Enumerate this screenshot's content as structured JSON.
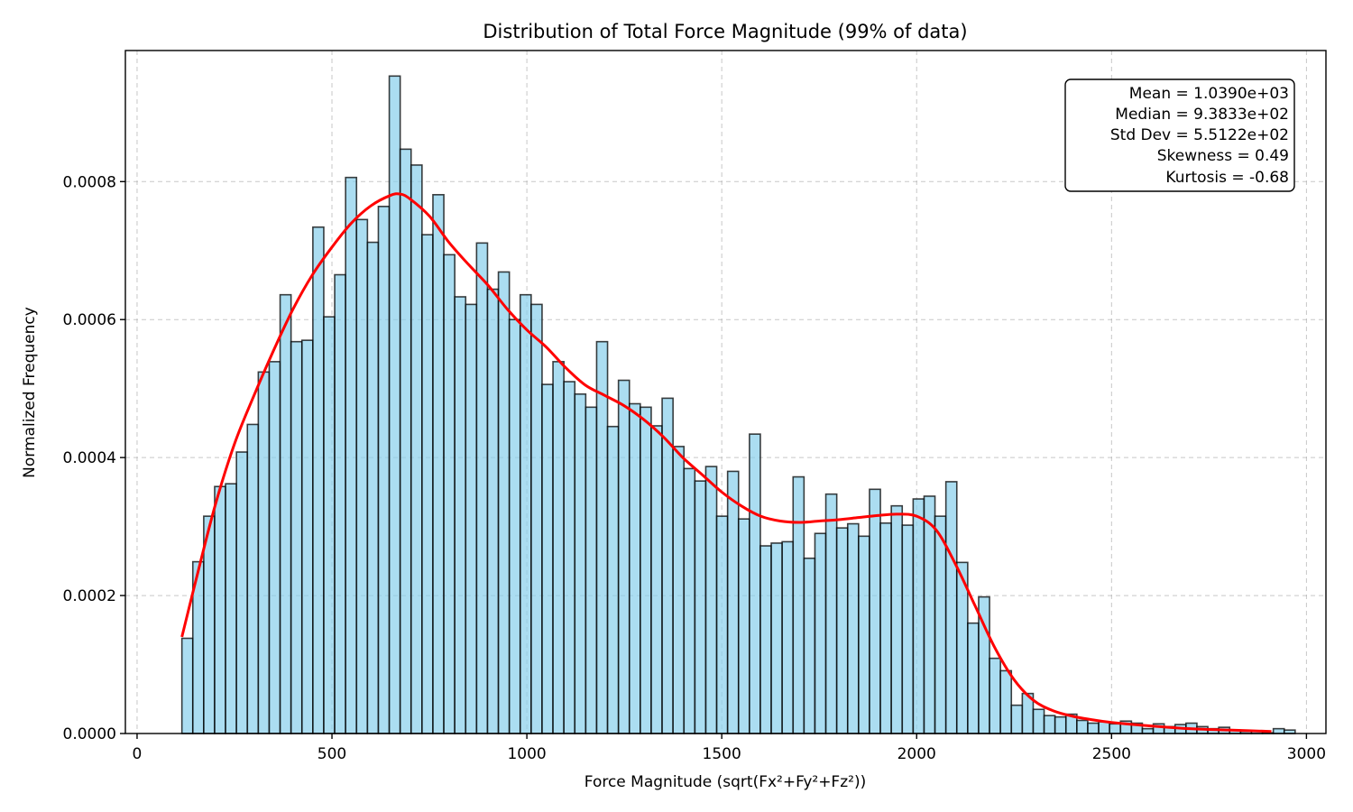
{
  "chart_data": {
    "type": "bar",
    "title": "Distribution of Total Force Magnitude (99% of data)",
    "xlabel": "Force Magnitude (sqrt(Fx²+Fy²+Fz²))",
    "ylabel": "Normalized Frequency",
    "xlim": [
      -30,
      3050
    ],
    "ylim": [
      0,
      0.00099
    ],
    "grid": true,
    "xticks": [
      0,
      500,
      1000,
      1500,
      2000,
      2500,
      3000
    ],
    "xtick_labels": [
      "0",
      "500",
      "1000",
      "1500",
      "2000",
      "2500",
      "3000"
    ],
    "yticks": [
      0,
      0.0002,
      0.0004,
      0.0006,
      0.0008
    ],
    "ytick_labels": [
      "0.0000",
      "0.0002",
      "0.0004",
      "0.0006",
      "0.0008"
    ],
    "histogram": {
      "bin_start": 115,
      "bin_width": 28,
      "values": [
        0.000138,
        0.000249,
        0.000315,
        0.000358,
        0.000362,
        0.000408,
        0.000448,
        0.000524,
        0.000539,
        0.000636,
        0.000568,
        0.00057,
        0.000734,
        0.000604,
        0.000665,
        0.000806,
        0.000745,
        0.000712,
        0.000764,
        0.000953,
        0.000847,
        0.000824,
        0.000723,
        0.000781,
        0.000694,
        0.000633,
        0.000622,
        0.000711,
        0.000644,
        0.000669,
        0.0006,
        0.000636,
        0.000622,
        0.000506,
        0.000539,
        0.00051,
        0.000492,
        0.000473,
        0.000568,
        0.000445,
        0.000512,
        0.000478,
        0.000473,
        0.000446,
        0.000486,
        0.000416,
        0.000384,
        0.000366,
        0.000387,
        0.000315,
        0.00038,
        0.000311,
        0.000434,
        0.000272,
        0.000276,
        0.000278,
        0.000372,
        0.000254,
        0.00029,
        0.000347,
        0.000298,
        0.000304,
        0.000286,
        0.000354,
        0.000305,
        0.00033,
        0.000302,
        0.00034,
        0.000344,
        0.000315,
        0.000365,
        0.000248,
        0.00016,
        0.000198,
        0.000109,
        9.1e-05,
        4.1e-05,
        5.8e-05,
        3.5e-05,
        2.6e-05,
        2.4e-05,
        2.8e-05,
        1.9e-05,
        1.5e-05,
        1.7e-05,
        1.4e-05,
        1.8e-05,
        1.5e-05,
        7e-06,
        1.4e-05,
        1e-05,
        1.3e-05,
        1.5e-05,
        1e-05,
        7e-06,
        9e-06,
        5e-06,
        3e-06,
        4e-06,
        1e-06,
        7e-06,
        5e-06
      ]
    },
    "kde": {
      "x": [
        115,
        150,
        200,
        250,
        300,
        350,
        400,
        450,
        500,
        550,
        600,
        650,
        675,
        700,
        750,
        800,
        850,
        900,
        950,
        1000,
        1050,
        1100,
        1150,
        1200,
        1250,
        1300,
        1350,
        1400,
        1450,
        1500,
        1550,
        1600,
        1650,
        1700,
        1750,
        1800,
        1850,
        1900,
        1950,
        2000,
        2050,
        2100,
        2150,
        2200,
        2250,
        2300,
        2350,
        2400,
        2450,
        2500,
        2600,
        2700,
        2800,
        2910
      ],
      "y": [
        0.00014,
        0.00022,
        0.00033,
        0.00042,
        0.00049,
        0.000555,
        0.000615,
        0.000665,
        0.000705,
        0.00074,
        0.000765,
        0.00078,
        0.000782,
        0.000775,
        0.00075,
        0.000712,
        0.00068,
        0.00065,
        0.000615,
        0.000585,
        0.00056,
        0.00053,
        0.000505,
        0.00049,
        0.000475,
        0.000455,
        0.00043,
        0.0004,
        0.000375,
        0.00035,
        0.00033,
        0.000315,
        0.000308,
        0.000306,
        0.000308,
        0.00031,
        0.000313,
        0.000316,
        0.000318,
        0.000315,
        0.000295,
        0.000245,
        0.000185,
        0.000125,
        7.8e-05,
        4.8e-05,
        3.3e-05,
        2.5e-05,
        2e-05,
        1.6e-05,
        1.1e-05,
        7e-06,
        5e-06,
        3e-06
      ]
    },
    "stats": [
      "Mean = 1.0390e+03",
      "Median = 9.3833e+02",
      "Std Dev = 5.5122e+02",
      "Skewness = 0.49",
      "Kurtosis = -0.68"
    ],
    "legend_position": "top-right",
    "colors": {
      "bar_fill": "#87CEEB",
      "bar_edge": "#000000",
      "kde_line": "#ff0000"
    }
  }
}
